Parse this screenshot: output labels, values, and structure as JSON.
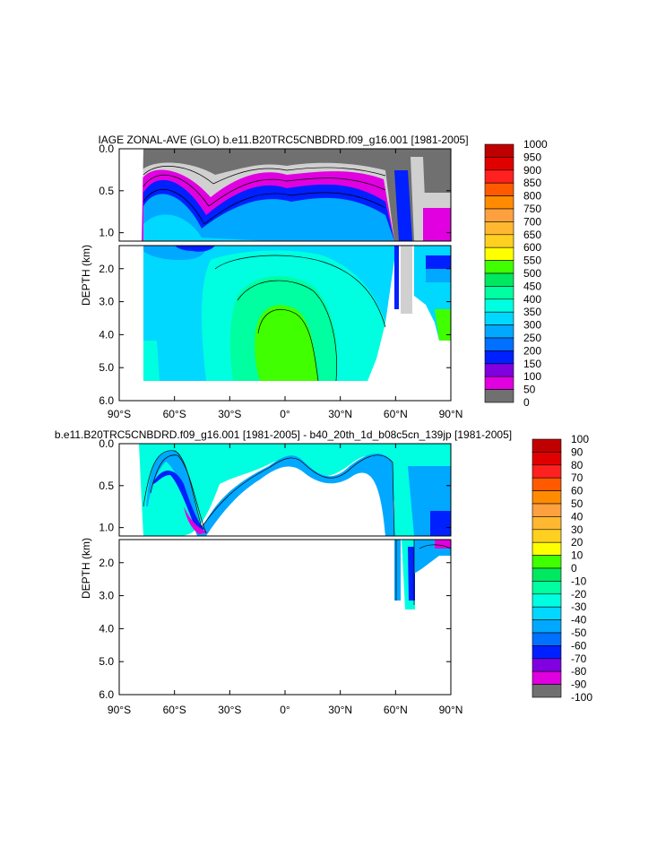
{
  "chart_data": [
    {
      "type": "contour",
      "title": "IAGE ZONAL-AVE (GLO) b.e11.B20TRC5CNBDRD.f09_g16.001 [1981-2005]",
      "ylabel": "DEPTH (km)",
      "x_ticks": [
        "90°S",
        "60°S",
        "30°S",
        "0°",
        "30°N",
        "60°N",
        "90°N"
      ],
      "x_range": [
        -90,
        90
      ],
      "y_top_ticks": [
        "0.0",
        "0.5",
        "1.0"
      ],
      "y_top_range": [
        0,
        1.1
      ],
      "y_bottom_ticks": [
        "2.0",
        "3.0",
        "4.0",
        "5.0",
        "6.0"
      ],
      "y_bottom_range": [
        1.3,
        6.0
      ],
      "levels": [
        "1000",
        "950",
        "900",
        "850",
        "800",
        "750",
        "700",
        "650",
        "600",
        "550",
        "500",
        "450",
        "400",
        "350",
        "300",
        "250",
        "200",
        "150",
        "100",
        "50",
        "0"
      ],
      "colors": [
        "#c00000",
        "#e00000",
        "#ff2020",
        "#ff5a00",
        "#ff8c00",
        "#ffa040",
        "#ffb830",
        "#ffd020",
        "#ffff00",
        "#40ff00",
        "#00e860",
        "#00ffa0",
        "#00ffe0",
        "#00d8ff",
        "#00a8ff",
        "#0070ff",
        "#0020ff",
        "#8000e0",
        "#e000e0",
        "#d0d0d0",
        "#707070"
      ]
    },
    {
      "type": "contour",
      "title": "b.e11.B20TRC5CNBDRD.f09_g16.001 [1981-2005] - b40_20th_1d_b08c5cn_139jp [1981-2005]",
      "ylabel": "DEPTH (km)",
      "x_ticks": [
        "90°S",
        "60°S",
        "30°S",
        "0°",
        "30°N",
        "60°N",
        "90°N"
      ],
      "x_range": [
        -90,
        90
      ],
      "y_top_ticks": [
        "0.0",
        "0.5",
        "1.0"
      ],
      "y_top_range": [
        0,
        1.1
      ],
      "y_bottom_ticks": [
        "2.0",
        "3.0",
        "4.0",
        "5.0",
        "6.0"
      ],
      "y_bottom_range": [
        1.3,
        6.0
      ],
      "levels": [
        "100",
        "90",
        "80",
        "70",
        "60",
        "50",
        "40",
        "30",
        "20",
        "10",
        "0",
        "-10",
        "-20",
        "-30",
        "-40",
        "-50",
        "-60",
        "-70",
        "-80",
        "-90",
        "-100"
      ],
      "colors": [
        "#c00000",
        "#e00000",
        "#ff2020",
        "#ff5a00",
        "#ff8c00",
        "#ffa040",
        "#ffb830",
        "#ffd020",
        "#ffff00",
        "#40ff00",
        "#00e860",
        "#00ffa0",
        "#00ffe0",
        "#00d8ff",
        "#00a8ff",
        "#0070ff",
        "#0020ff",
        "#8000e0",
        "#e000e0",
        "#d0d0d0",
        "#707070"
      ]
    }
  ]
}
